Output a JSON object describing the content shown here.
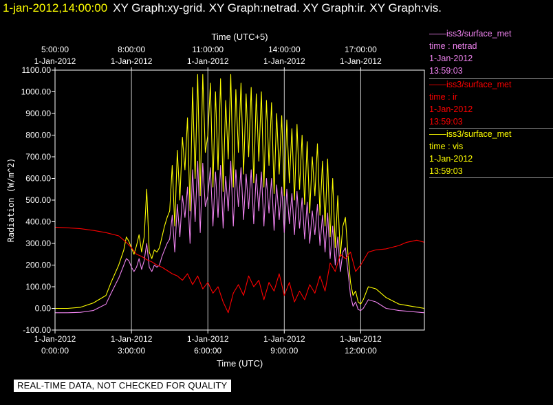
{
  "header": {
    "timestamp": "1-jan-2012,14:00:00",
    "titles": "XY Graph:xy-grid.  XY Graph:netrad.  XY Graph:ir.  XY Graph:vis."
  },
  "legend": [
    {
      "dataset": "——iss3/surface_met",
      "variable": "time : netrad",
      "date": "1-Jan-2012",
      "time": "13:59:03",
      "color": "#ee82ee"
    },
    {
      "dataset": "——iss3/surface_met",
      "variable": "time : ir",
      "date": "1-Jan-2012",
      "time": "13:59:03",
      "color": "#ff0000"
    },
    {
      "dataset": "——iss3/surface_met",
      "variable": "time : vis",
      "date": "1-Jan-2012",
      "time": "13:59:03",
      "color": "#ffff00"
    }
  ],
  "notice": "REAL-TIME DATA, NOT CHECKED FOR QUALITY",
  "chart_data": {
    "type": "line",
    "xlabel": "Time (UTC)",
    "x2label": "Time (UTC+5)",
    "ylabel": "Radiation (W/m^2)",
    "xlim": [
      0,
      14.5
    ],
    "ylim": [
      -100,
      1100
    ],
    "grid": true,
    "y_ticks": [
      "-100.00",
      "0.00",
      "100.00",
      "200.00",
      "300.00",
      "400.00",
      "500.00",
      "600.00",
      "700.00",
      "800.00",
      "900.00",
      "1000.00",
      "1100.00"
    ],
    "y_tick_values": [
      -100,
      0,
      100,
      200,
      300,
      400,
      500,
      600,
      700,
      800,
      900,
      1000,
      1100
    ],
    "x_ticks": [
      {
        "value": 0,
        "date": "1-Jan-2012",
        "time": "0:00:00"
      },
      {
        "value": 3,
        "date": "1-Jan-2012",
        "time": "3:00:00"
      },
      {
        "value": 6,
        "date": "1-Jan-2012",
        "time": "6:00:00"
      },
      {
        "value": 9,
        "date": "1-Jan-2012",
        "time": "9:00:00"
      },
      {
        "value": 12,
        "date": "1-Jan-2012",
        "time": "12:00:00"
      }
    ],
    "x2_ticks": [
      {
        "value": 0,
        "date": "1-Jan-2012",
        "time": "5:00:00"
      },
      {
        "value": 3,
        "date": "1-Jan-2012",
        "time": "8:00:00"
      },
      {
        "value": 6,
        "date": "1-Jan-2012",
        "time": "11:00:00"
      },
      {
        "value": 9,
        "date": "1-Jan-2012",
        "time": "14:00:00"
      },
      {
        "value": 12,
        "date": "1-Jan-2012",
        "time": "17:00:00"
      }
    ],
    "series": [
      {
        "name": "time : vis",
        "color": "#ffff00",
        "x": [
          0,
          0.5,
          1,
          1.5,
          2,
          2.2,
          2.5,
          2.7,
          2.8,
          2.9,
          3.0,
          3.1,
          3.2,
          3.3,
          3.4,
          3.5,
          3.6,
          3.7,
          3.8,
          3.9,
          4.0,
          4.1,
          4.2,
          4.3,
          4.4,
          4.5,
          4.6,
          4.7,
          4.8,
          4.9,
          5.0,
          5.1,
          5.2,
          5.3,
          5.4,
          5.5,
          5.6,
          5.7,
          5.8,
          5.9,
          6.0,
          6.1,
          6.2,
          6.3,
          6.4,
          6.5,
          6.6,
          6.7,
          6.8,
          6.9,
          7.0,
          7.1,
          7.2,
          7.3,
          7.4,
          7.5,
          7.6,
          7.7,
          7.8,
          7.9,
          8.0,
          8.1,
          8.2,
          8.3,
          8.4,
          8.5,
          8.6,
          8.7,
          8.8,
          8.9,
          9.0,
          9.1,
          9.2,
          9.3,
          9.4,
          9.5,
          9.6,
          9.7,
          9.8,
          9.9,
          10.0,
          10.1,
          10.2,
          10.3,
          10.4,
          10.5,
          10.6,
          10.7,
          10.8,
          10.9,
          11.0,
          11.1,
          11.2,
          11.3,
          11.4,
          11.5,
          11.6,
          11.7,
          11.8,
          11.9,
          12.0,
          12.1,
          12.3,
          12.6,
          13.0,
          13.5,
          14.0,
          14.5
        ],
        "values": [
          0,
          0,
          5,
          25,
          60,
          120,
          200,
          270,
          330,
          310,
          280,
          250,
          290,
          340,
          260,
          330,
          550,
          260,
          230,
          270,
          260,
          280,
          330,
          380,
          420,
          450,
          660,
          380,
          730,
          500,
          790,
          640,
          880,
          450,
          1020,
          600,
          1080,
          520,
          1080,
          720,
          800,
          1040,
          560,
          1000,
          640,
          1060,
          540,
          960,
          690,
          1080,
          560,
          1010,
          720,
          1040,
          620,
          990,
          700,
          1020,
          580,
          990,
          680,
          1000,
          560,
          960,
          660,
          950,
          530,
          900,
          620,
          890,
          520,
          870,
          580,
          830,
          500,
          850,
          550,
          800,
          480,
          770,
          440,
          700,
          520,
          760,
          430,
          680,
          380,
          690,
          330,
          600,
          280,
          520,
          240,
          380,
          420,
          250,
          120,
          60,
          80,
          30,
          20,
          40,
          100,
          90,
          50,
          20,
          10,
          0
        ]
      },
      {
        "name": "time : netrad",
        "color": "#ee82ee",
        "x": [
          0,
          0.5,
          1,
          1.5,
          2,
          2.2,
          2.5,
          2.7,
          2.8,
          2.9,
          3.0,
          3.1,
          3.2,
          3.3,
          3.4,
          3.5,
          3.6,
          3.7,
          3.8,
          3.9,
          4.0,
          4.1,
          4.2,
          4.3,
          4.4,
          4.5,
          4.6,
          4.7,
          4.8,
          4.9,
          5.0,
          5.1,
          5.2,
          5.3,
          5.4,
          5.5,
          5.6,
          5.7,
          5.8,
          5.9,
          6.0,
          6.1,
          6.2,
          6.3,
          6.4,
          6.5,
          6.6,
          6.7,
          6.8,
          6.9,
          7.0,
          7.1,
          7.2,
          7.3,
          7.4,
          7.5,
          7.6,
          7.7,
          7.8,
          7.9,
          8.0,
          8.1,
          8.2,
          8.3,
          8.4,
          8.5,
          8.6,
          8.7,
          8.8,
          8.9,
          9.0,
          9.1,
          9.2,
          9.3,
          9.4,
          9.5,
          9.6,
          9.7,
          9.8,
          9.9,
          10.0,
          10.1,
          10.2,
          10.3,
          10.4,
          10.5,
          10.6,
          10.7,
          10.8,
          10.9,
          11.0,
          11.1,
          11.2,
          11.3,
          11.4,
          11.5,
          11.6,
          11.7,
          11.8,
          11.9,
          12.0,
          12.1,
          12.3,
          12.6,
          13.0,
          13.5,
          14.0,
          14.5
        ],
        "values": [
          -20,
          -20,
          -18,
          -10,
          20,
          70,
          140,
          200,
          230,
          220,
          190,
          170,
          190,
          230,
          180,
          220,
          300,
          190,
          170,
          200,
          190,
          200,
          240,
          270,
          300,
          320,
          430,
          260,
          480,
          330,
          520,
          420,
          560,
          300,
          640,
          400,
          680,
          350,
          670,
          470,
          520,
          650,
          380,
          630,
          420,
          660,
          370,
          610,
          450,
          680,
          380,
          640,
          470,
          650,
          410,
          620,
          460,
          640,
          390,
          620,
          450,
          630,
          380,
          600,
          440,
          600,
          360,
          570,
          410,
          560,
          350,
          550,
          390,
          530,
          340,
          540,
          370,
          510,
          320,
          490,
          300,
          450,
          340,
          480,
          290,
          430,
          260,
          440,
          230,
          380,
          200,
          330,
          170,
          260,
          280,
          170,
          60,
          10,
          30,
          -5,
          -10,
          0,
          40,
          30,
          0,
          -10,
          -15,
          -20
        ]
      },
      {
        "name": "time : ir",
        "color": "#ff0000",
        "x": [
          0,
          0.5,
          1,
          1.5,
          2,
          2.5,
          2.8,
          3.0,
          3.2,
          3.4,
          3.6,
          3.8,
          4.0,
          4.2,
          4.4,
          4.6,
          4.8,
          5.0,
          5.2,
          5.4,
          5.6,
          5.8,
          6.0,
          6.2,
          6.4,
          6.6,
          6.8,
          7.0,
          7.2,
          7.4,
          7.6,
          7.8,
          8.0,
          8.2,
          8.4,
          8.6,
          8.8,
          9.0,
          9.2,
          9.4,
          9.6,
          9.8,
          10.0,
          10.2,
          10.4,
          10.6,
          10.8,
          11.0,
          11.2,
          11.4,
          11.6,
          11.8,
          12.0,
          12.3,
          12.6,
          13.0,
          13.5,
          13.8,
          14.0,
          14.2,
          14.5
        ],
        "values": [
          375,
          372,
          368,
          360,
          350,
          335,
          305,
          280,
          250,
          240,
          225,
          215,
          200,
          190,
          175,
          160,
          150,
          130,
          160,
          110,
          150,
          90,
          120,
          70,
          100,
          30,
          -20,
          70,
          110,
          60,
          150,
          100,
          130,
          40,
          120,
          80,
          160,
          60,
          120,
          30,
          80,
          40,
          110,
          70,
          150,
          80,
          210,
          170,
          250,
          230,
          260,
          170,
          200,
          260,
          270,
          275,
          290,
          305,
          310,
          315,
          305
        ]
      }
    ]
  }
}
